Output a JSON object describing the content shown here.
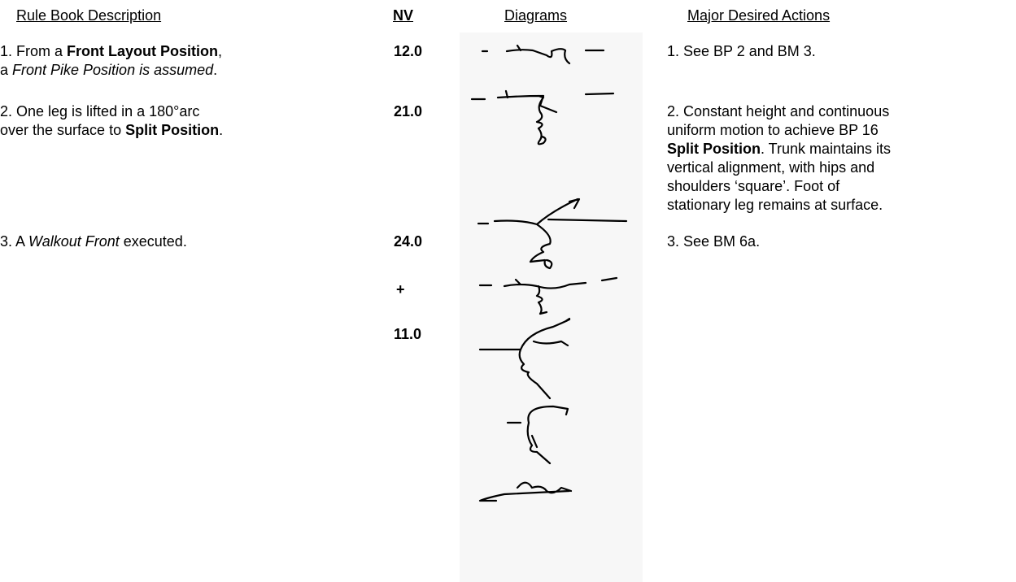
{
  "header": {
    "description": "Rule Book Description",
    "nv": "NV",
    "diagrams": "Diagrams",
    "actions": "Major Desired Actions"
  },
  "rows": [
    {
      "description": [
        [
          {
            "text": "1.  From a ",
            "style": "normal"
          },
          {
            "text": "Front Layout Position",
            "style": "bold"
          },
          {
            "text": ",",
            "style": "normal"
          }
        ],
        [
          {
            "text": "a ",
            "style": "normal"
          },
          {
            "text": "Front Pike Position is assumed",
            "style": "italic"
          },
          {
            "text": ".",
            "style": "normal"
          }
        ]
      ],
      "nv": "12.0",
      "actions": [
        [
          {
            "text": "1. See BP 2 and BM 3.",
            "style": "normal"
          }
        ]
      ]
    },
    {
      "description": [
        [
          {
            "text": "2.  One leg is lifted in a 180°arc",
            "style": "normal"
          }
        ],
        [
          {
            "text": "over the surface to ",
            "style": "normal"
          },
          {
            "text": "Split Position",
            "style": "bold"
          },
          {
            "text": ".",
            "style": "normal"
          }
        ]
      ],
      "nv": "21.0",
      "actions": [
        [
          {
            "text": "2.  Constant height and continuous",
            "style": "normal"
          }
        ],
        [
          {
            "text": "uniform motion to achieve BP 16",
            "style": "normal"
          }
        ],
        [
          {
            "text": "Split Position",
            "style": "bold"
          },
          {
            "text": ". Trunk maintains its",
            "style": "normal"
          }
        ],
        [
          {
            "text": "vertical alignment, with hips and",
            "style": "normal"
          }
        ],
        [
          {
            "text": "shoulders ‘square’.  Foot of",
            "style": "normal"
          }
        ],
        [
          {
            "text": "stationary leg remains at surface.",
            "style": "normal"
          }
        ]
      ]
    },
    {
      "description": [
        [
          {
            "text": "3.  A ",
            "style": "normal"
          },
          {
            "text": "Walkout Front",
            "style": "italic"
          },
          {
            "text": " executed.",
            "style": "normal"
          }
        ]
      ],
      "nv": "24.0",
      "actions": [
        [
          {
            "text": "3.  See BM 6a.",
            "style": "normal"
          }
        ]
      ]
    }
  ],
  "nv_additional": [
    "+",
    "11.0"
  ]
}
